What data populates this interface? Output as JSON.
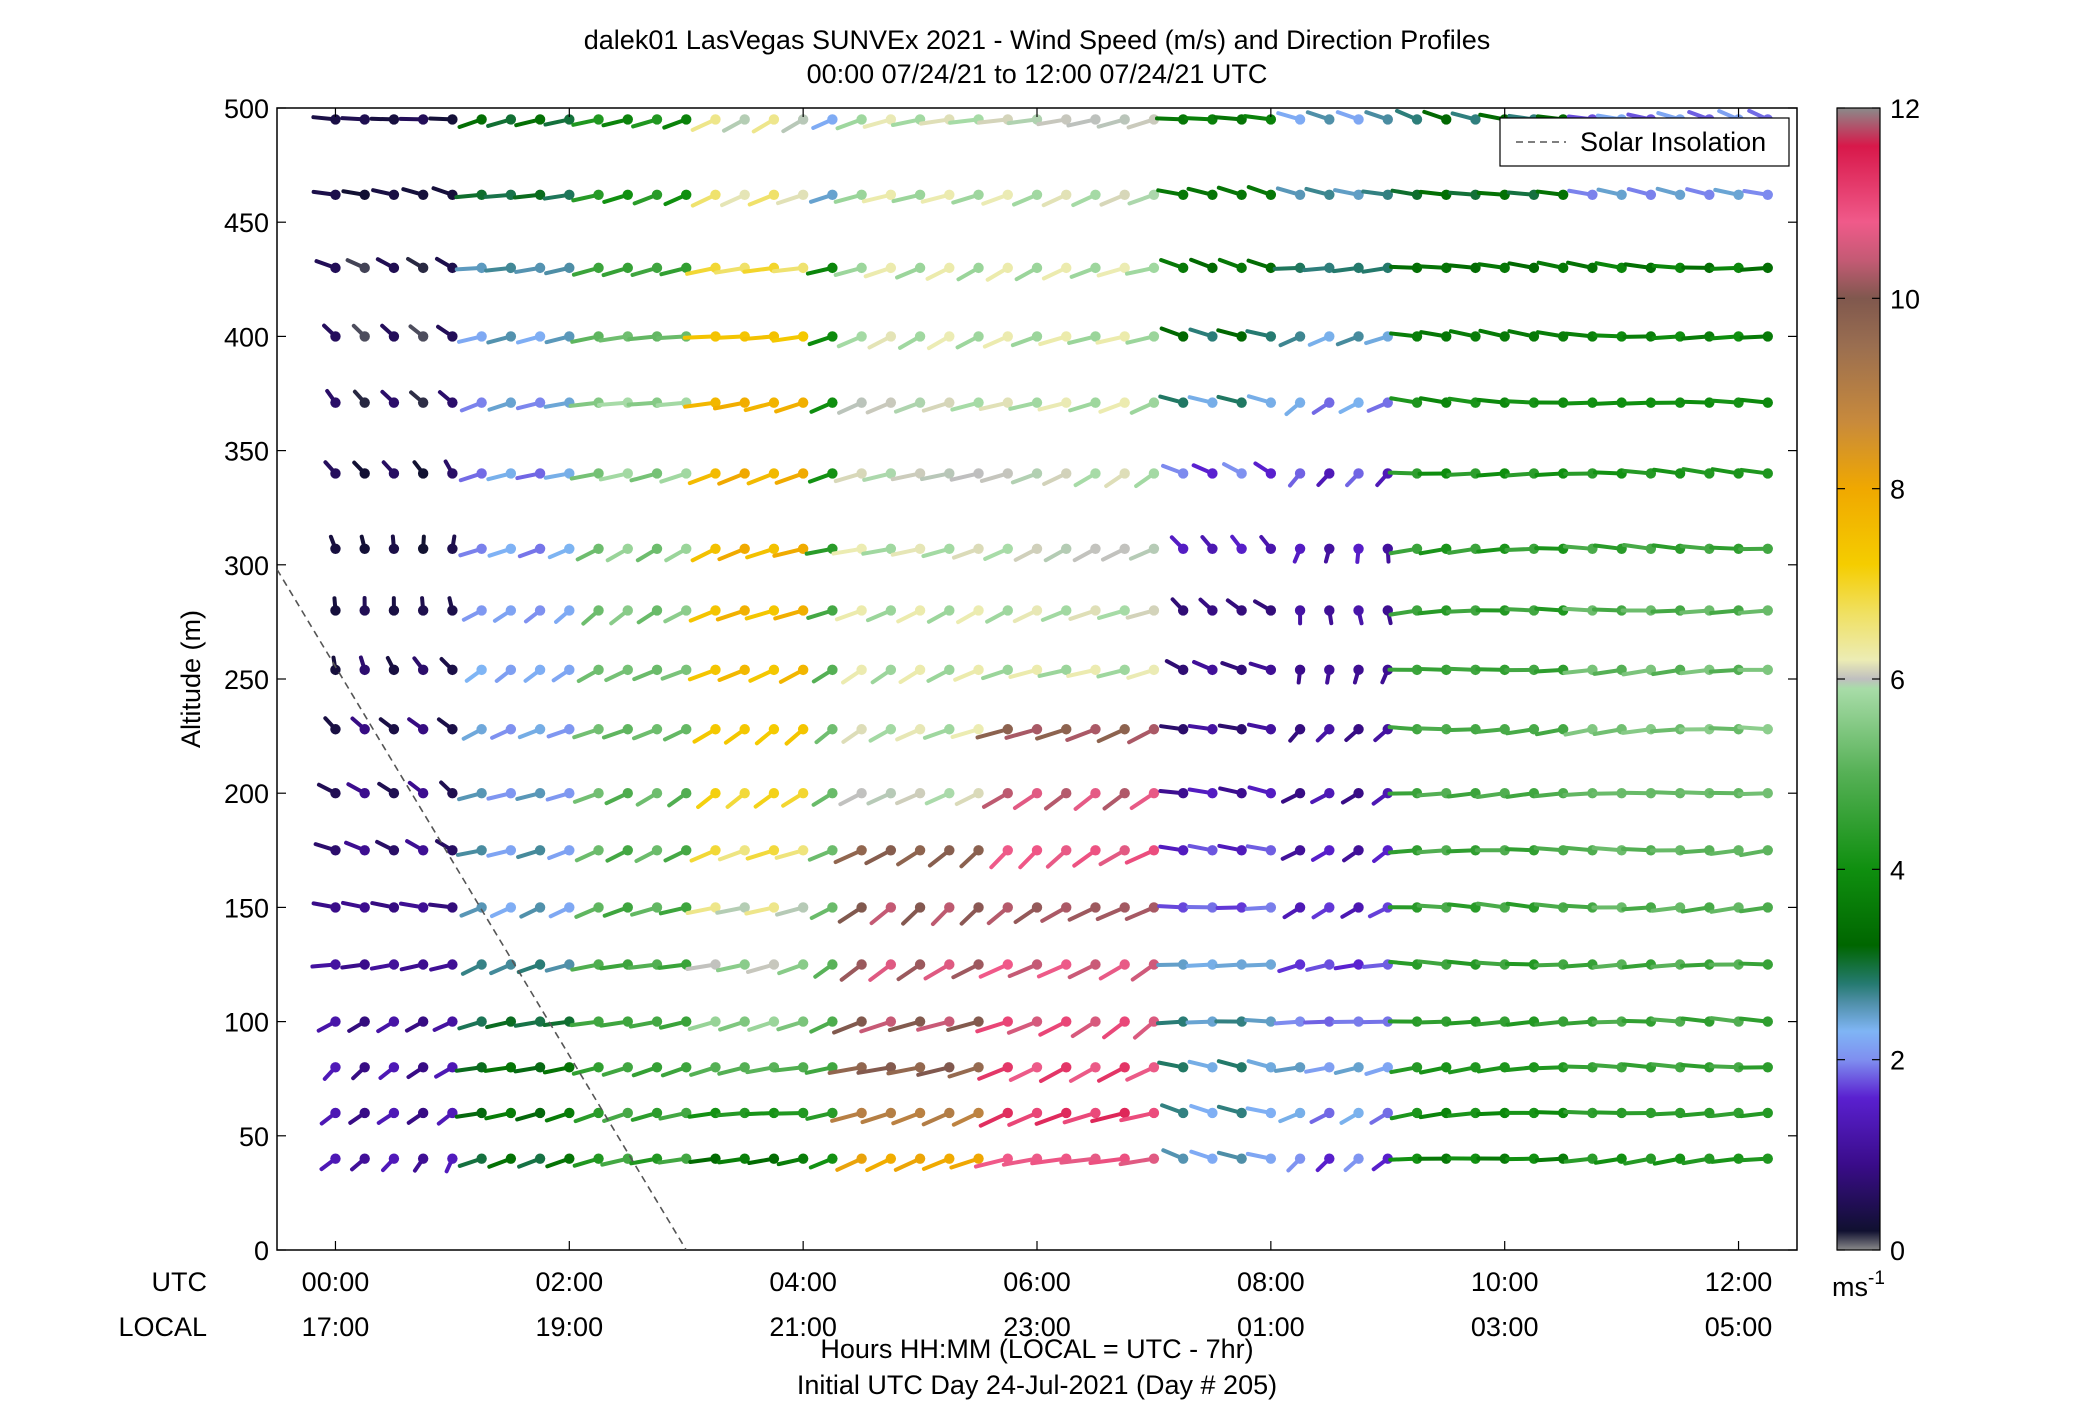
{
  "chart_data": {
    "type": "wind barb profile (scatter)",
    "title_line1": "dalek01 LasVegas SUNVEx 2021 - Wind Speed (m/s) and Direction Profiles",
    "title_line2": "00:00 07/24/21 to 12:00 07/24/21  UTC",
    "ylabel": "Altitude (m)",
    "ylim": [
      0,
      500
    ],
    "yticks": [
      "0",
      "50",
      "100",
      "150",
      "200",
      "250",
      "300",
      "350",
      "400",
      "450",
      "500"
    ],
    "xlim_hours": [
      -0.5,
      12.5
    ],
    "x_row_labels": {
      "utc": "UTC",
      "local": "LOCAL"
    },
    "x_utc_ticks": [
      "00:00",
      "02:00",
      "04:00",
      "06:00",
      "08:00",
      "10:00",
      "12:00"
    ],
    "x_local_ticks": [
      "17:00",
      "19:00",
      "21:00",
      "23:00",
      "01:00",
      "03:00",
      "05:00"
    ],
    "xlabel_line1": "Hours HH:MM  (LOCAL = UTC - 7hr)",
    "xlabel_line2": "Initial UTC Day 24-Jul-2021 (Day # 205)",
    "legend": {
      "entry": "Solar Insolation",
      "placement": "top-right",
      "line_style": "dashed",
      "line_color": "#555555"
    },
    "colorbar": {
      "label": "ms",
      "label_superscript": "-1",
      "range": [
        0,
        12
      ],
      "ticks": [
        "0",
        "2",
        "4",
        "6",
        "8",
        "10",
        "12"
      ],
      "colormap": [
        [
          0,
          "#8a8a8a"
        ],
        [
          0.2,
          "#101030"
        ],
        [
          0.9,
          "#3a0c8a"
        ],
        [
          1.6,
          "#5a20d0"
        ],
        [
          2.0,
          "#7f8ff0"
        ],
        [
          2.3,
          "#7fb5f5"
        ],
        [
          2.6,
          "#4f8fa8"
        ],
        [
          2.8,
          "#257a70"
        ],
        [
          3.2,
          "#006600"
        ],
        [
          4.0,
          "#0f8f0f"
        ],
        [
          5.0,
          "#55b055"
        ],
        [
          5.9,
          "#a8dca8"
        ],
        [
          6.0,
          "#bfbfbf"
        ],
        [
          6.2,
          "#ececb4"
        ],
        [
          6.7,
          "#f0e060"
        ],
        [
          7.2,
          "#f5cd00"
        ],
        [
          8.0,
          "#f0a800"
        ],
        [
          8.7,
          "#c88a3c"
        ],
        [
          9.5,
          "#9a6e50"
        ],
        [
          10.0,
          "#80584e"
        ],
        [
          10.4,
          "#c45a74"
        ],
        [
          10.8,
          "#f05a8a"
        ],
        [
          11.6,
          "#d8184a"
        ],
        [
          12.0,
          "#8a8a8a"
        ]
      ]
    },
    "solar_insolation_line": [
      [
        -0.5,
        298
      ],
      [
        3.0,
        0
      ]
    ],
    "altitudes_m": [
      40,
      60,
      80,
      100,
      125,
      150,
      175,
      200,
      228,
      254,
      280,
      307,
      340,
      371,
      400,
      430,
      462,
      495
    ],
    "speed_bands": [
      {
        "t_start": 0.0,
        "t_end": 1.0,
        "speed": [
          1.2,
          1.1,
          1.1,
          1.0,
          1.0,
          0.9,
          0.8,
          0.7,
          0.6,
          0.5,
          0.4,
          0.3,
          0.4,
          0.4,
          0.3,
          0.3,
          0.3,
          0.4
        ]
      },
      {
        "t_start": 1.1,
        "t_end": 2.0,
        "speed": [
          3.2,
          3.4,
          3.3,
          3.0,
          2.7,
          2.4,
          2.4,
          2.3,
          2.2,
          2.2,
          2.1,
          2.1,
          2.1,
          2.2,
          2.4,
          2.6,
          3.0,
          3.2
        ]
      },
      {
        "t_start": 2.0,
        "t_end": 3.0,
        "speed": [
          4.5,
          4.6,
          4.6,
          4.7,
          4.8,
          4.9,
          5.0,
          5.1,
          5.2,
          5.3,
          5.4,
          5.5,
          5.6,
          5.7,
          5.2,
          4.6,
          4.2,
          4.0
        ]
      },
      {
        "t_start": 3.0,
        "t_end": 4.1,
        "speed": [
          3.5,
          4.2,
          5.0,
          5.6,
          5.8,
          6.2,
          6.7,
          7.0,
          7.3,
          7.5,
          7.6,
          7.7,
          7.8,
          7.8,
          7.4,
          6.8,
          6.4,
          6.2
        ]
      },
      {
        "t_start": 4.3,
        "t_end": 5.5,
        "speed": [
          8.0,
          9.0,
          9.8,
          10.2,
          10.4,
          10.2,
          9.8,
          6.0,
          6.0,
          6.0,
          6.0,
          6.0,
          6.0,
          6.0,
          6.0,
          6.0,
          6.0,
          6.0
        ]
      },
      {
        "t_start": 5.5,
        "t_end": 7.0,
        "speed": [
          10.8,
          11.2,
          11.0,
          10.8,
          10.6,
          10.2,
          10.8,
          10.5,
          10.0,
          6.0,
          6.0,
          6.0,
          6.0,
          6.0,
          6.0,
          6.0,
          6.0,
          6.0
        ]
      },
      {
        "t_start": 7.0,
        "t_end": 8.0,
        "speed": [
          2.4,
          2.5,
          2.6,
          2.6,
          2.4,
          1.8,
          1.6,
          1.2,
          0.9,
          0.9,
          0.8,
          1.4,
          1.8,
          2.6,
          3.0,
          3.4,
          3.5,
          3.6
        ]
      },
      {
        "t_start": 8.0,
        "t_end": 9.0,
        "speed": [
          1.8,
          2.1,
          2.3,
          1.9,
          1.7,
          1.5,
          1.3,
          1.1,
          1.0,
          1.0,
          1.1,
          1.3,
          1.6,
          2.1,
          2.5,
          2.8,
          2.6,
          2.4
        ]
      },
      {
        "t_start": 9.0,
        "t_end": 10.5,
        "speed": [
          3.8,
          4.0,
          4.2,
          4.4,
          4.5,
          4.6,
          4.7,
          4.8,
          4.8,
          4.6,
          4.5,
          4.4,
          4.2,
          4.0,
          3.6,
          3.4,
          3.2,
          3.0
        ]
      },
      {
        "t_start": 10.5,
        "t_end": 12.3,
        "speed": [
          4.2,
          4.4,
          4.6,
          4.7,
          4.8,
          5.0,
          5.1,
          5.2,
          5.4,
          5.2,
          5.0,
          4.6,
          4.2,
          4.0,
          3.8,
          3.6,
          2.2,
          2.0
        ]
      }
    ],
    "direction_bands": [
      {
        "t_start": 0.0,
        "t_end": 1.0,
        "dir_deg": [
          200,
          210,
          220,
          240,
          260,
          280,
          300,
          320,
          330,
          340,
          350,
          360,
          350,
          340,
          320,
          300,
          290,
          280
        ]
      },
      {
        "t_start": 1.0,
        "t_end": 4.1,
        "dir_deg": [
          250,
          255,
          250,
          245,
          240,
          235,
          235,
          230,
          230,
          230,
          230,
          235,
          240,
          245,
          250,
          250,
          245,
          240
        ]
      },
      {
        "t_start": 4.1,
        "t_end": 7.0,
        "dir_deg": [
          240,
          235,
          235,
          230,
          225,
          225,
          225,
          225,
          230,
          230,
          230,
          235,
          235,
          240,
          240,
          240,
          240,
          245
        ]
      },
      {
        "t_start": 7.0,
        "t_end": 8.0,
        "dir_deg": [
          300,
          290,
          290,
          280,
          280,
          270,
          275,
          280,
          290,
          310,
          320,
          330,
          320,
          310,
          300,
          290,
          285,
          280
        ]
      },
      {
        "t_start": 8.0,
        "t_end": 9.0,
        "dir_deg": [
          220,
          240,
          250,
          260,
          250,
          230,
          220,
          210,
          200,
          195,
          190,
          190,
          200,
          220,
          240,
          260,
          280,
          290
        ]
      },
      {
        "t_start": 9.0,
        "t_end": 12.3,
        "dir_deg": [
          265,
          265,
          265,
          266,
          266,
          267,
          268,
          268,
          268,
          268,
          268,
          268,
          270,
          272,
          275,
          280,
          290,
          300
        ]
      }
    ]
  }
}
